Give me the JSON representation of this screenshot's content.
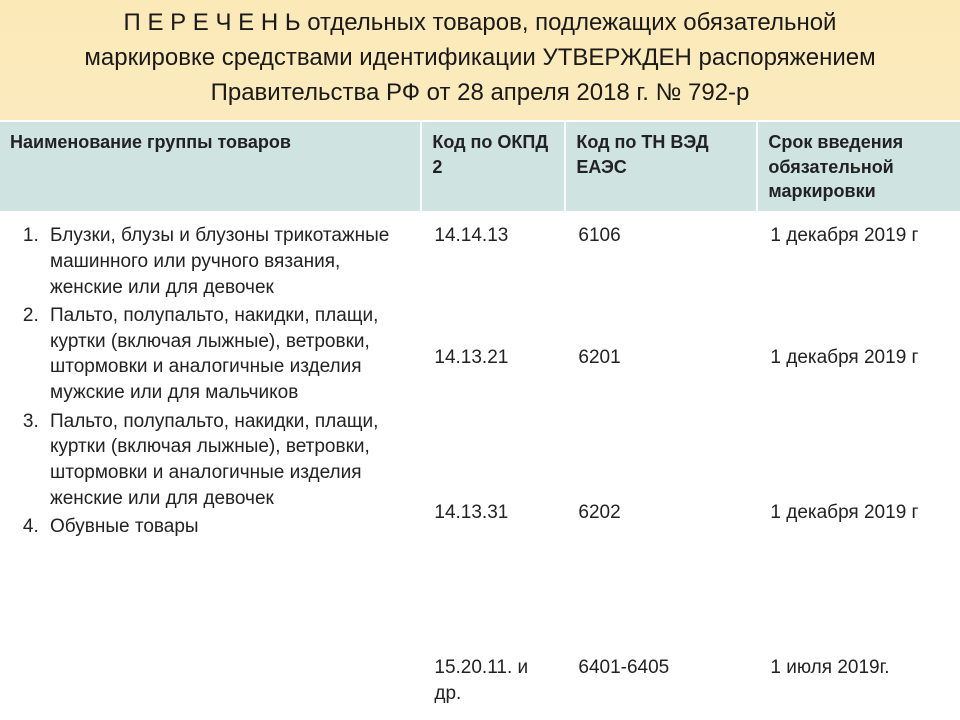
{
  "title": "П Е Р Е Ч Е Н Ь отдельных товаров, подлежащих обязательной маркировке средствами идентификации УТВЕРЖДЕН распоряжением Правительства РФ от 28 апреля 2018 г. № 792-р",
  "table": {
    "columns": [
      "Наименование группы товаров",
      "Код по ОКПД 2",
      "Код по ТН ВЭД ЕАЭС",
      "Срок введения обязательной маркировки"
    ],
    "column_widths_pct": [
      44,
      15,
      20,
      21
    ],
    "header_bg": "#cfe3e1",
    "body_bg": "#ffffff",
    "border_color": "#ffffff",
    "header_font_weight": "bold",
    "header_fontsize_pt": 14,
    "body_fontsize_pt": 14,
    "rows": [
      {
        "name": "Блузки, блузы и блузоны трикотажные машинного или ручного вязания, женские или для девочек",
        "okpd2": "14.14.13",
        "tnved": "6106",
        "deadline": "1 декабря 2019 г"
      },
      {
        "name": "Пальто, полупальто, накидки, плащи, куртки (включая лыжные), ветровки, штормовки и аналогичные изделия мужские или для мальчиков",
        "okpd2": "14.13.21",
        "tnved": "6201",
        "deadline": "1 декабря 2019 г"
      },
      {
        "name": "Пальто, полупальто, накидки, плащи, куртки (включая лыжные), ветровки, штормовки и аналогичные изделия женские или для девочек",
        "okpd2": "14.13.31",
        "tnved": "6202",
        "deadline": "1 декабря 2019 г"
      },
      {
        "name": " Обувные товары",
        "okpd2": "15.20.11. и др.",
        "tnved": "6401-6405",
        "deadline": "1 июля 2019г."
      }
    ]
  },
  "style": {
    "page_bg_top": "#fce9b8",
    "page_bg_bottom": "#f5f0d8",
    "title_fontsize_pt": 18,
    "title_color": "#1a1a1a",
    "font_family": "Arial"
  }
}
